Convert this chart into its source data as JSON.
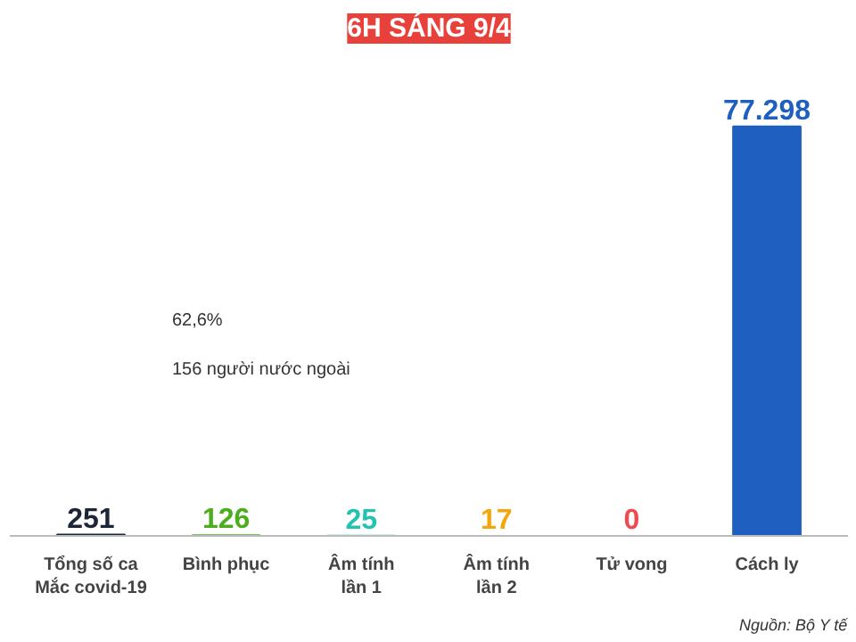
{
  "chart_data": {
    "type": "bar",
    "title": "6H SÁNG 9/4",
    "categories": [
      "Tổng số ca\nMắc covid-19",
      "Bình phục",
      "Âm tính\nlần 1",
      "Âm tính\nlần 2",
      "Tử vong",
      "Cách ly"
    ],
    "values": [
      251,
      126,
      25,
      17,
      0,
      77298
    ],
    "value_labels": [
      "251",
      "126",
      "25",
      "17",
      "0",
      "77.298"
    ],
    "colors": [
      "#1c2636",
      "#4cae1e",
      "#22c3b0",
      "#f6a609",
      "#ef4a4f",
      "#1e5fc0"
    ],
    "annotations": [
      "62,6%",
      "156 người nước ngoài",
      "Nguồn: Bộ Y tế"
    ],
    "tick_labels": "x",
    "grid": false
  }
}
